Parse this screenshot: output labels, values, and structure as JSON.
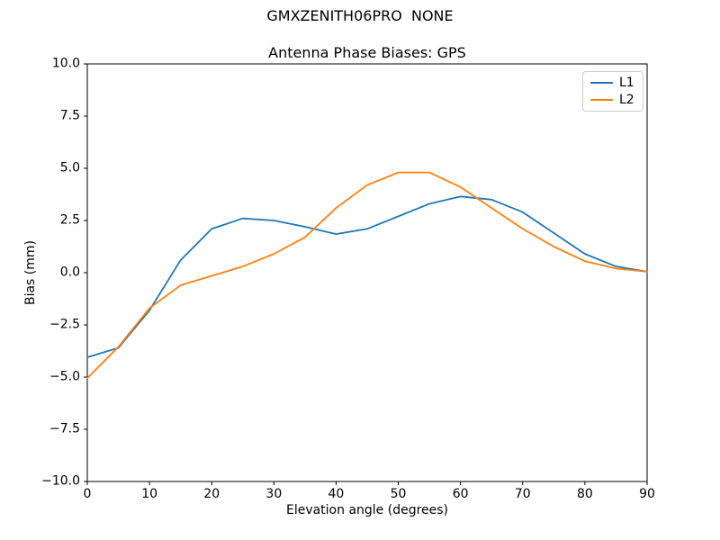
{
  "figure": {
    "suptitle": "GMXZENITH06PRO  NONE",
    "background_color": "#ffffff",
    "text_color": "#000000"
  },
  "chart_data": {
    "type": "line",
    "title": "Antenna Phase Biases: GPS",
    "xlabel": "Elevation angle (degrees)",
    "ylabel": "Bias (mm)",
    "xlim": [
      0,
      90
    ],
    "ylim": [
      -10,
      10
    ],
    "xticks": [
      0,
      10,
      20,
      30,
      40,
      50,
      60,
      70,
      80,
      90
    ],
    "yticks": [
      -10,
      -7.5,
      -5,
      -2.5,
      0,
      2.5,
      5,
      7.5,
      10
    ],
    "ytick_labels": [
      "−10.0",
      "−7.5",
      "−5.0",
      "−2.5",
      "0.0",
      "2.5",
      "5.0",
      "7.5",
      "10.0"
    ],
    "grid": false,
    "axes_color": "#000000",
    "legend": {
      "position": "upper right",
      "border_color": "#cccccc",
      "entries": [
        "L1",
        "L2"
      ]
    },
    "x": [
      0,
      5,
      10,
      15,
      20,
      25,
      30,
      35,
      40,
      45,
      50,
      55,
      60,
      65,
      70,
      75,
      80,
      85,
      90
    ],
    "series": [
      {
        "name": "L1",
        "color": "#1f77b4",
        "values": [
          -4.05,
          -3.6,
          -1.8,
          0.6,
          2.1,
          2.6,
          2.5,
          2.2,
          1.85,
          2.1,
          2.7,
          3.3,
          3.65,
          3.5,
          2.9,
          1.9,
          0.9,
          0.3,
          0.05
        ]
      },
      {
        "name": "L2",
        "color": "#ff7f0e",
        "values": [
          -5.05,
          -3.55,
          -1.7,
          -0.6,
          -0.15,
          0.3,
          0.9,
          1.7,
          3.1,
          4.2,
          4.8,
          4.8,
          4.1,
          3.1,
          2.1,
          1.25,
          0.55,
          0.2,
          0.05
        ]
      }
    ]
  }
}
